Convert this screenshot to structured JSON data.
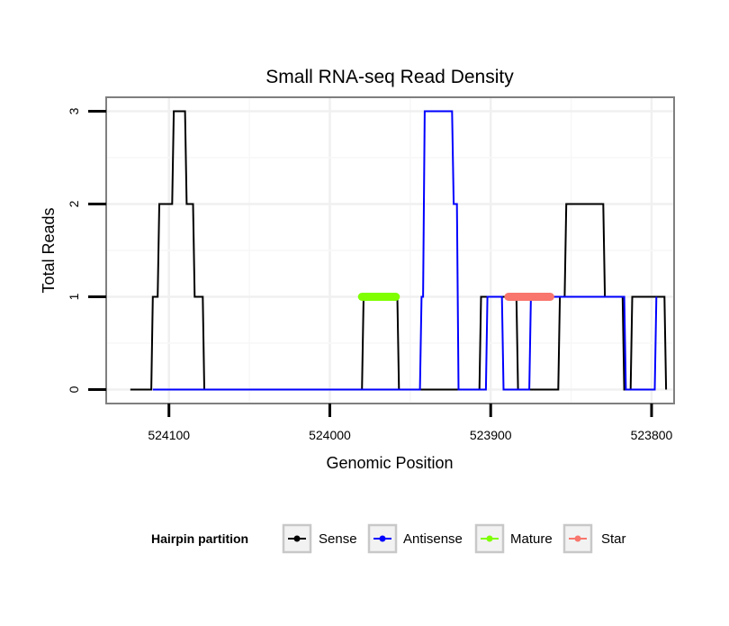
{
  "chart_data": {
    "type": "line",
    "title": "Small RNA-seq Read Density",
    "xlabel": "Genomic Position",
    "ylabel": "Total Reads",
    "x_reversed": true,
    "xlim": [
      524139,
      523786
    ],
    "ylim": [
      -0.15,
      3.15
    ],
    "x_ticks": [
      524100,
      524000,
      523900,
      523800
    ],
    "x_tick_labels": [
      "524100",
      "524000",
      "523900",
      "523800"
    ],
    "y_ticks": [
      0,
      1,
      2,
      3
    ],
    "y_tick_labels": [
      "0",
      "1",
      "2",
      "3"
    ],
    "grid": true,
    "legend": {
      "title": "Hairpin partition",
      "position": "bottom",
      "entries": [
        {
          "label": "Sense",
          "color": "#000000"
        },
        {
          "label": "Antisense",
          "color": "#0000ff"
        },
        {
          "label": "Mature",
          "color": "#7fff00"
        },
        {
          "label": "Star",
          "color": "#f8766d"
        }
      ]
    },
    "series": [
      {
        "name": "Sense",
        "color": "#000000",
        "x": [
          524124,
          524111,
          524110,
          524107,
          524106,
          524098,
          524097,
          524090,
          524089,
          524085,
          524084,
          524079,
          524078,
          523980,
          523979,
          523958,
          523957,
          523907,
          523906,
          523884,
          523883,
          523858,
          523857,
          523854,
          523853,
          523830,
          523829,
          523818,
          523817,
          523813,
          523812,
          523792,
          523791,
          523791
        ],
        "y": [
          0,
          0,
          1,
          1,
          2,
          2,
          3,
          3,
          2,
          2,
          1,
          1,
          0,
          0,
          1,
          1,
          0,
          0,
          1,
          1,
          0,
          0,
          1,
          1,
          2,
          2,
          1,
          1,
          0,
          0,
          1,
          1,
          0,
          0
        ]
      },
      {
        "name": "Antisense",
        "color": "#0000ff",
        "x": [
          524110,
          523944,
          523943,
          523942,
          523941,
          523924,
          523923,
          523921,
          523920,
          523903,
          523902,
          523893,
          523892,
          523876,
          523875,
          523817,
          523816,
          523798,
          523797
        ],
        "y": [
          0,
          0,
          1,
          1,
          3,
          3,
          2,
          2,
          0,
          0,
          1,
          1,
          0,
          0,
          1,
          1,
          0,
          0,
          1
        ]
      },
      {
        "name": "Mature",
        "color": "#7fff00",
        "x": [
          523980,
          523959
        ],
        "y": [
          1,
          1
        ]
      },
      {
        "name": "Star",
        "color": "#f8766d",
        "x": [
          523889,
          523863
        ],
        "y": [
          1,
          1
        ]
      }
    ]
  }
}
